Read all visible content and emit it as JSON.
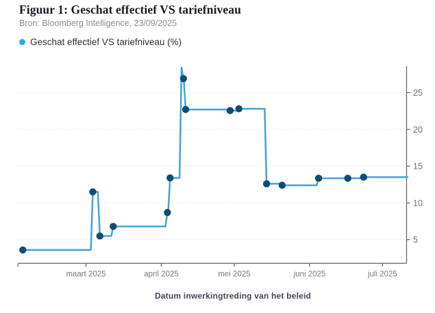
{
  "header": {
    "title": "Figuur 1: Geschat effectief VS tariefniveau",
    "source": "Bron: Bloomberg Intelligence, 23/09/2025"
  },
  "legend": {
    "label": "Geschat effectief VS tariefniveau (%)",
    "dot_color": "#29a9e1"
  },
  "xlabel": "Datum inwerkingtreding van het beleid",
  "chart_data": {
    "type": "line",
    "title": "Geschat effectief VS tariefniveau (%)",
    "x_tick_labels": [
      "maart 2025",
      "april 2025",
      "mei 2025",
      "juni 2025",
      "juli 2025"
    ],
    "x_tick_days": [
      28,
      59,
      89,
      120,
      150
    ],
    "x_domain_days": [
      0,
      160.3
    ],
    "x_domain_note": "days since 2025-02-01, estimated from axis",
    "y_ticks": [
      5,
      10,
      15,
      20,
      25
    ],
    "ylim": [
      1.8,
      28.8
    ],
    "grid": "horizontal-dotted",
    "y_axis_side": "right",
    "step_interpolation": true,
    "colors": {
      "line": "#3fa3dc",
      "marker": "#0e4d73",
      "axis": "#6b6b6b",
      "grid": "#dcdcdc",
      "tick_label": "#757575"
    },
    "series": [
      {
        "name": "Geschat effectief VS tariefniveau (%)",
        "points": [
          {
            "date": "2025-02-03",
            "d": 2.0,
            "v": 3.6,
            "marker": true
          },
          {
            "date": "2025-03-04",
            "d": 30.8,
            "v": 11.5,
            "marker": true
          },
          {
            "date": "2025-03-07",
            "d": 33.7,
            "v": 5.5,
            "marker": true
          },
          {
            "date": "2025-03-12",
            "d": 39.2,
            "v": 6.8,
            "marker": true
          },
          {
            "date": "2025-04-03",
            "d": 61.5,
            "v": 8.7,
            "marker": true
          },
          {
            "date": "2025-04-05",
            "d": 62.6,
            "v": 13.4,
            "marker": true
          },
          {
            "date": "2025-04-09",
            "d": 67.3,
            "v": 28.4,
            "marker": false
          },
          {
            "date": "2025-04-10",
            "d": 68.1,
            "v": 26.9,
            "marker": true
          },
          {
            "date": "2025-04-11",
            "d": 69.0,
            "v": 22.7,
            "marker": true
          },
          {
            "date": "2025-04-29",
            "d": 87.3,
            "v": 22.55,
            "marker": true
          },
          {
            "date": "2025-05-02",
            "d": 90.9,
            "v": 22.8,
            "marker": true
          },
          {
            "date": "2025-05-14",
            "d": 102.3,
            "v": 12.6,
            "marker": true
          },
          {
            "date": "2025-05-21",
            "d": 108.7,
            "v": 12.4,
            "marker": true
          },
          {
            "date": "2025-06-04",
            "d": 123.7,
            "v": 13.35,
            "marker": true
          },
          {
            "date": "2025-06-16",
            "d": 135.7,
            "v": 13.35,
            "marker": true
          },
          {
            "date": "2025-06-23",
            "d": 142.2,
            "v": 13.5,
            "marker": true
          },
          {
            "date": "2025-07-11",
            "d": 160.3,
            "v": 13.5,
            "marker": false
          }
        ]
      }
    ]
  }
}
